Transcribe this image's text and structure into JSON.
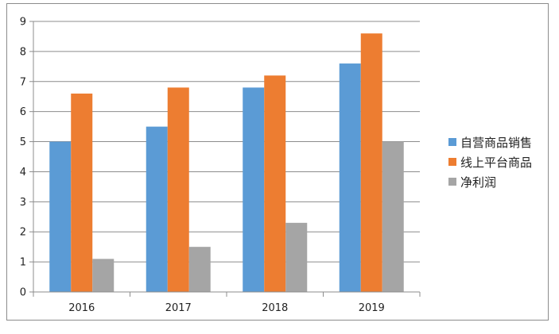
{
  "chart_data": {
    "type": "bar",
    "title": "",
    "xlabel": "",
    "ylabel": "",
    "categories": [
      "2016",
      "2017",
      "2018",
      "2019"
    ],
    "ylim": [
      0,
      9
    ],
    "yticks": [
      "0",
      "1",
      "2",
      "3",
      "4",
      "5",
      "6",
      "7",
      "8",
      "9"
    ],
    "grid": true,
    "legend_position": "right",
    "series": [
      {
        "name": "自营商品销售",
        "color": "#5b9bd5",
        "values": [
          5.0,
          5.5,
          6.8,
          7.6
        ]
      },
      {
        "name": "线上平台商品",
        "color": "#ed7d31",
        "values": [
          6.6,
          6.8,
          7.2,
          8.6
        ]
      },
      {
        "name": "净利润",
        "color": "#a5a5a5",
        "values": [
          1.1,
          1.5,
          2.3,
          5.0
        ]
      }
    ]
  }
}
